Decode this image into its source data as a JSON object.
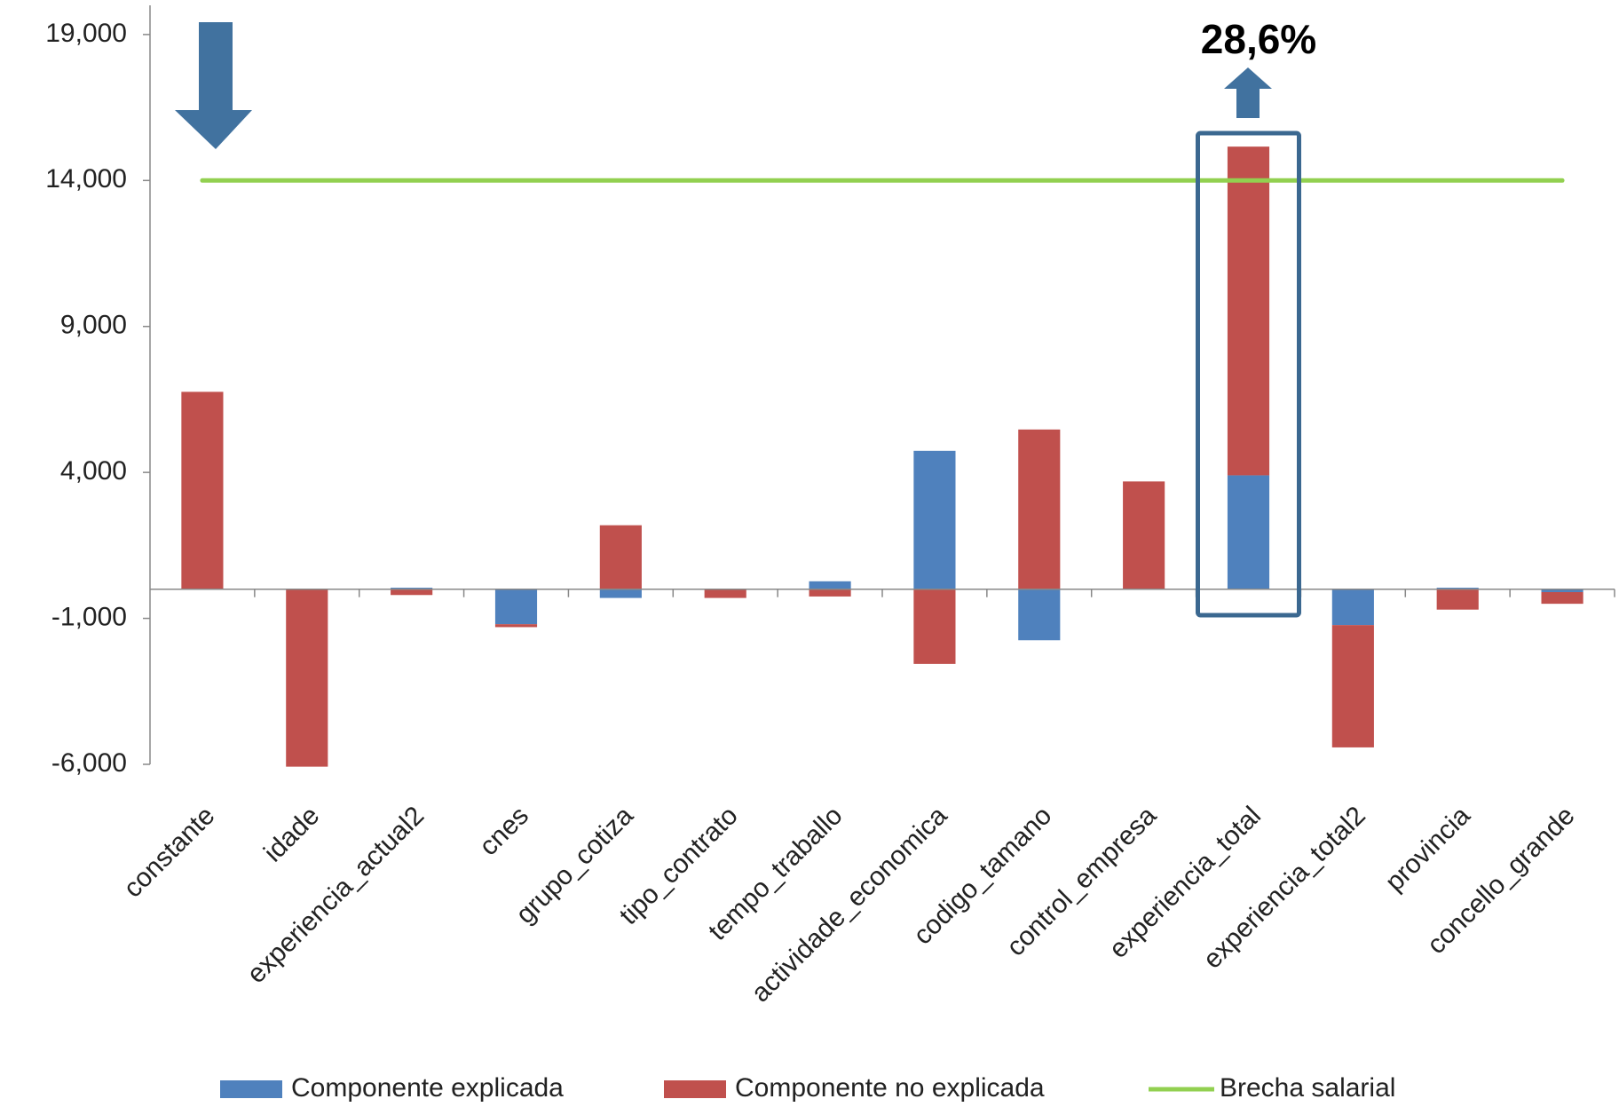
{
  "chart_data": {
    "type": "bar",
    "stacked": true,
    "annotation": "28,6%",
    "categories": [
      "constante",
      "idade",
      "experiencia_actual2",
      "cnes",
      "grupo_cotiza",
      "tipo_contrato",
      "tempo_traballo",
      "actividade_economica",
      "codigo_tamano",
      "control_empresa",
      "experiencia_total",
      "experiencia_total2",
      "provincia",
      "concello_grande"
    ],
    "series": [
      {
        "name": "Componente explicada",
        "color": "#4f81bd",
        "values": [
          0,
          0,
          50,
          -1200,
          -300,
          0,
          270,
          4740,
          -1750,
          0,
          3900,
          -1230,
          50,
          -100
        ]
      },
      {
        "name": "Componente no explicada",
        "color": "#c0504d",
        "values": [
          6760,
          -6080,
          -200,
          -100,
          2190,
          -300,
          -250,
          -2560,
          5470,
          3690,
          11260,
          -4190,
          -700,
          -400
        ]
      },
      {
        "name": "Brecha salarial",
        "type": "line",
        "color": "#92d050",
        "values": [
          14000,
          14000,
          14000,
          14000,
          14000,
          14000,
          14000,
          14000,
          14000,
          14000,
          14000,
          14000,
          14000,
          14000
        ]
      }
    ],
    "ylim": [
      -6000,
      20000
    ],
    "yticks": [
      {
        "value": -6000,
        "label": "-6,000"
      },
      {
        "value": -1000,
        "label": "-1,000"
      },
      {
        "value": 4000,
        "label": "4,000"
      },
      {
        "value": 9000,
        "label": "9,000"
      },
      {
        "value": 14000,
        "label": "14,000"
      },
      {
        "value": 19000,
        "label": "19,000"
      }
    ],
    "highlight_category": 10
  }
}
